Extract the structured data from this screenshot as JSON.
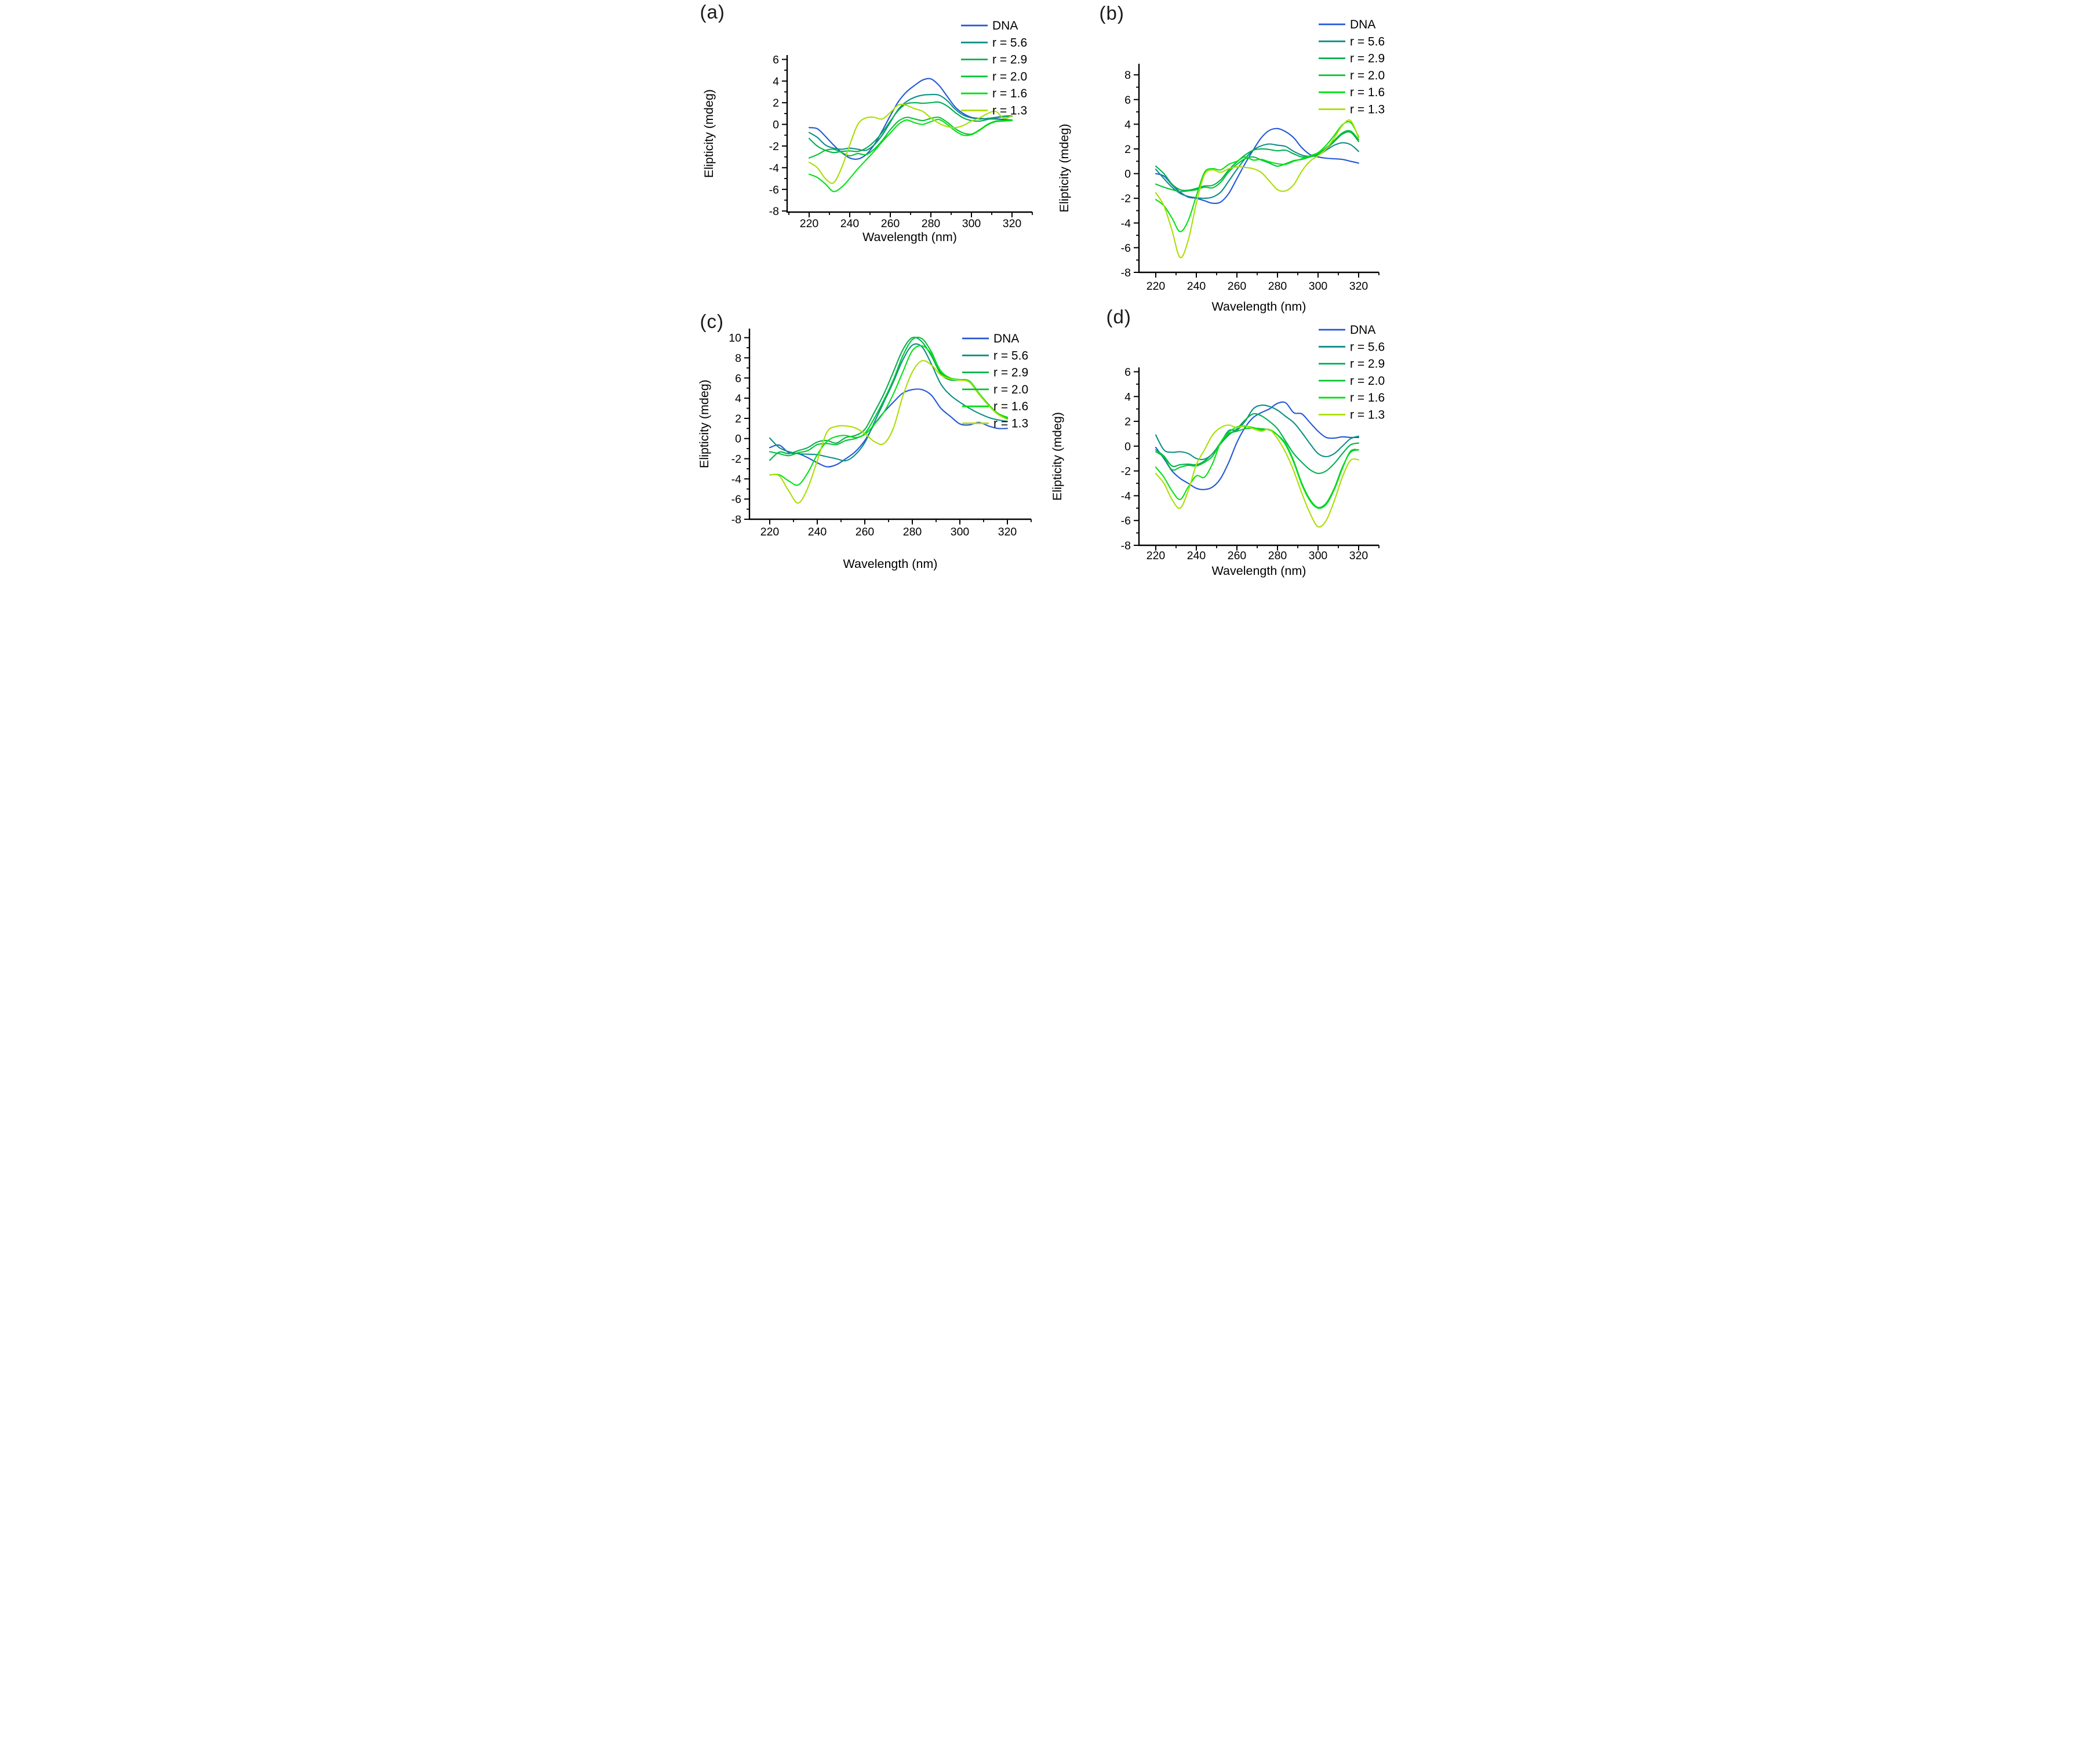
{
  "figure": {
    "kind": "CD spectroscopy figure, 2x2 panels",
    "background": "#ffffff",
    "text_color": "#000000"
  },
  "colors": {
    "dna": "#2257d9",
    "r56": "#0c8e86",
    "r29": "#00b04f",
    "r20": "#00c430",
    "r16": "#00e212",
    "r13": "#aade00"
  },
  "legend_labels": [
    "DNA",
    "r = 5.6",
    "r = 2.9",
    "r = 2.0",
    "r = 1.6",
    "r = 1.3"
  ],
  "chart_data": [
    {
      "id": "a",
      "panel_label": "(a)",
      "type": "line",
      "title": "",
      "xlabel": "Wavelength (nm)",
      "ylabel": "Elipticity (mdeg)",
      "legend_position": "top-right",
      "grid": false,
      "x": [
        220,
        224,
        228,
        232,
        236,
        240,
        244,
        248,
        252,
        256,
        260,
        264,
        268,
        272,
        276,
        280,
        284,
        288,
        292,
        296,
        300,
        304,
        308,
        312,
        316,
        320
      ],
      "xlim": [
        210,
        330
      ],
      "ylim": [
        -8.1,
        6.4
      ],
      "x_major_ticks": [
        220,
        240,
        260,
        280,
        300,
        320
      ],
      "x_minor_ticks": [
        210,
        230,
        250,
        270,
        290,
        310,
        330
      ],
      "y_major_ticks": [
        -8,
        -6,
        -4,
        -2,
        0,
        2,
        4,
        6
      ],
      "y_minor_ticks": [
        -7,
        -5,
        -3,
        -1,
        1,
        3,
        5
      ],
      "series": [
        {
          "name": "DNA",
          "color_key": "dna",
          "values": [
            -0.3,
            -0.4,
            -1.1,
            -1.9,
            -2.6,
            -3.1,
            -3.2,
            -2.8,
            -1.9,
            -0.6,
            0.8,
            2.1,
            3.0,
            3.6,
            4.1,
            4.2,
            3.6,
            2.6,
            1.6,
            1.0,
            0.65,
            0.55,
            0.5,
            0.5,
            0.45,
            0.4
          ]
        },
        {
          "name": "r = 5.6",
          "color_key": "r56",
          "values": [
            -0.75,
            -1.2,
            -1.9,
            -2.2,
            -2.3,
            -2.2,
            -2.3,
            -2.4,
            -1.9,
            -1.0,
            0.2,
            1.4,
            2.1,
            2.5,
            2.7,
            2.75,
            2.7,
            2.2,
            1.4,
            0.85,
            0.6,
            0.5,
            0.55,
            0.65,
            0.75,
            0.8
          ]
        },
        {
          "name": "r = 2.9",
          "color_key": "r29",
          "values": [
            -1.3,
            -2.0,
            -2.4,
            -2.6,
            -2.5,
            -2.45,
            -2.5,
            -2.2,
            -1.6,
            -0.75,
            0.3,
            1.3,
            1.9,
            2.0,
            1.95,
            2.0,
            2.05,
            1.7,
            1.1,
            0.6,
            0.35,
            0.3,
            0.45,
            0.6,
            0.7,
            0.75
          ]
        },
        {
          "name": "r = 2.0",
          "color_key": "r20",
          "values": [
            -3.1,
            -2.8,
            -2.4,
            -2.3,
            -2.6,
            -2.9,
            -2.7,
            -2.8,
            -2.3,
            -1.5,
            -0.5,
            0.3,
            0.65,
            0.5,
            0.35,
            0.55,
            0.65,
            0.2,
            -0.4,
            -0.8,
            -0.9,
            -0.5,
            0.0,
            0.3,
            0.35,
            0.4
          ]
        },
        {
          "name": "r = 1.6",
          "color_key": "r16",
          "values": [
            -4.6,
            -4.9,
            -5.5,
            -6.2,
            -5.8,
            -5.0,
            -4.1,
            -3.3,
            -2.5,
            -1.6,
            -0.8,
            0.0,
            0.4,
            0.15,
            0.0,
            0.25,
            0.45,
            0.0,
            -0.6,
            -1.0,
            -0.95,
            -0.55,
            -0.05,
            0.25,
            0.3,
            0.35
          ]
        },
        {
          "name": "r = 1.3",
          "color_key": "r13",
          "values": [
            -3.5,
            -4.0,
            -5.0,
            -5.4,
            -4.0,
            -1.9,
            0.0,
            0.6,
            0.65,
            0.5,
            1.1,
            1.8,
            1.75,
            1.45,
            1.2,
            0.6,
            0.1,
            -0.2,
            -0.3,
            -0.1,
            0.3,
            0.6,
            1.0,
            1.2,
            0.55,
            0.8
          ]
        }
      ]
    },
    {
      "id": "b",
      "panel_label": "(b)",
      "type": "line",
      "title": "",
      "xlabel": "Wavelength (nm)",
      "ylabel": "Elipticity (mdeg)",
      "legend_position": "top-right",
      "grid": false,
      "x": [
        220,
        224,
        228,
        232,
        236,
        240,
        244,
        248,
        252,
        256,
        260,
        264,
        268,
        272,
        276,
        280,
        284,
        288,
        292,
        296,
        300,
        304,
        308,
        312,
        316,
        320
      ],
      "xlim": [
        210,
        330
      ],
      "ylim": [
        -8,
        8.9
      ],
      "x_major_ticks": [
        220,
        240,
        260,
        280,
        300,
        320
      ],
      "x_minor_ticks": [
        210,
        230,
        250,
        270,
        290,
        310,
        330
      ],
      "y_major_ticks": [
        -8,
        -6,
        -4,
        -2,
        0,
        2,
        4,
        6,
        8
      ],
      "y_minor_ticks": [
        -7,
        -5,
        -3,
        -1,
        1,
        3,
        5,
        7
      ],
      "series": [
        {
          "name": "DNA",
          "color_key": "dna",
          "values": [
            0.0,
            -0.2,
            -0.9,
            -1.5,
            -1.9,
            -2.0,
            -2.2,
            -2.4,
            -2.3,
            -1.6,
            -0.4,
            0.8,
            1.9,
            2.9,
            3.5,
            3.65,
            3.4,
            2.9,
            2.1,
            1.55,
            1.35,
            1.25,
            1.2,
            1.15,
            1.0,
            0.85
          ]
        },
        {
          "name": "r = 5.6",
          "color_key": "r56",
          "values": [
            0.35,
            -0.4,
            -1.1,
            -1.6,
            -1.85,
            -1.95,
            -2.0,
            -1.9,
            -1.5,
            -0.6,
            0.35,
            1.2,
            1.9,
            2.25,
            2.4,
            2.3,
            2.2,
            1.8,
            1.5,
            1.4,
            1.5,
            1.9,
            2.3,
            2.5,
            2.35,
            1.8
          ]
        },
        {
          "name": "r = 2.9",
          "color_key": "r29",
          "values": [
            0.6,
            0.0,
            -0.85,
            -1.3,
            -1.35,
            -1.2,
            -1.0,
            -0.95,
            -0.5,
            0.3,
            0.95,
            1.5,
            1.9,
            2.0,
            1.95,
            1.85,
            1.9,
            1.6,
            1.35,
            1.4,
            1.55,
            2.0,
            2.6,
            3.2,
            3.35,
            2.6
          ]
        },
        {
          "name": "r = 2.0",
          "color_key": "r20",
          "values": [
            -0.85,
            -1.1,
            -1.3,
            -1.45,
            -1.4,
            -1.3,
            -1.1,
            -1.15,
            -0.7,
            0.15,
            0.75,
            1.2,
            1.35,
            1.1,
            0.85,
            0.6,
            0.8,
            1.05,
            1.15,
            1.35,
            1.6,
            2.1,
            2.7,
            3.3,
            3.45,
            2.75
          ]
        },
        {
          "name": "r = 1.6",
          "color_key": "r16",
          "values": [
            -2.1,
            -2.6,
            -3.6,
            -4.7,
            -3.8,
            -1.8,
            0.1,
            0.4,
            0.3,
            0.75,
            1.0,
            1.35,
            1.1,
            1.15,
            0.95,
            0.8,
            0.75,
            1.0,
            1.2,
            1.45,
            1.7,
            2.3,
            3.1,
            3.95,
            4.15,
            3.0
          ]
        },
        {
          "name": "r = 1.3",
          "color_key": "r13",
          "values": [
            -1.55,
            -2.6,
            -4.6,
            -6.8,
            -5.4,
            -2.4,
            -0.1,
            0.3,
            0.1,
            0.4,
            0.55,
            0.5,
            0.4,
            0.1,
            -0.6,
            -1.3,
            -1.4,
            -0.9,
            0.2,
            1.0,
            1.45,
            2.0,
            2.9,
            3.9,
            4.3,
            2.9
          ]
        }
      ]
    },
    {
      "id": "c",
      "panel_label": "(c)",
      "type": "line",
      "title": "",
      "xlabel": "Wavelength (nm)",
      "ylabel": "Elipticity (mdeg)",
      "legend_position": "top-right",
      "grid": false,
      "x": [
        220,
        224,
        228,
        232,
        236,
        240,
        244,
        248,
        252,
        256,
        260,
        264,
        268,
        272,
        276,
        280,
        284,
        288,
        292,
        296,
        300,
        304,
        308,
        312,
        316,
        320
      ],
      "xlim": [
        210,
        330
      ],
      "ylim": [
        -8,
        10.9
      ],
      "x_major_ticks": [
        220,
        240,
        260,
        280,
        300,
        320
      ],
      "x_minor_ticks": [
        210,
        230,
        250,
        270,
        290,
        310,
        330
      ],
      "y_major_ticks": [
        -8,
        -6,
        -4,
        -2,
        0,
        2,
        4,
        6,
        8,
        10
      ],
      "y_minor_ticks": [
        -7,
        -5,
        -3,
        -1,
        1,
        3,
        5,
        7,
        9
      ],
      "series": [
        {
          "name": "DNA",
          "color_key": "dna",
          "values": [
            -0.9,
            -0.65,
            -1.4,
            -1.5,
            -1.9,
            -2.4,
            -2.8,
            -2.6,
            -2.0,
            -1.3,
            -0.2,
            1.4,
            2.6,
            3.6,
            4.5,
            4.85,
            4.85,
            4.3,
            3.0,
            2.2,
            1.45,
            1.35,
            1.6,
            1.25,
            1.0,
            1.0
          ]
        },
        {
          "name": "r = 5.6",
          "color_key": "r56",
          "values": [
            0.05,
            -0.9,
            -1.3,
            -1.5,
            -1.55,
            -1.6,
            -1.8,
            -2.0,
            -2.2,
            -1.6,
            -0.4,
            1.6,
            3.6,
            5.6,
            7.8,
            9.25,
            9.1,
            7.4,
            5.4,
            4.3,
            3.6,
            3.0,
            2.5,
            2.1,
            1.85,
            1.7
          ]
        },
        {
          "name": "r = 2.9",
          "color_key": "r29",
          "values": [
            -2.15,
            -1.35,
            -1.5,
            -1.2,
            -0.9,
            -0.35,
            -0.2,
            -0.45,
            0.1,
            0.3,
            0.9,
            2.6,
            4.4,
            6.6,
            8.8,
            10.0,
            9.6,
            8.2,
            6.4,
            5.8,
            5.8,
            5.6,
            4.4,
            3.3,
            2.4,
            2.0
          ]
        },
        {
          "name": "r = 2.0",
          "color_key": "r20",
          "values": [
            -1.3,
            -1.5,
            -1.7,
            -1.4,
            -1.2,
            -0.6,
            -0.5,
            -0.6,
            -0.2,
            0.0,
            0.5,
            2.0,
            3.8,
            5.8,
            8.2,
            9.8,
            9.9,
            8.6,
            6.6,
            5.9,
            5.8,
            5.7,
            4.5,
            3.4,
            2.5,
            2.1
          ]
        },
        {
          "name": "r = 1.6",
          "color_key": "r16",
          "values": [
            -3.6,
            -3.6,
            -4.2,
            -4.6,
            -3.4,
            -1.6,
            -0.3,
            0.2,
            0.3,
            0.1,
            0.4,
            1.4,
            2.6,
            4.4,
            6.6,
            8.7,
            9.2,
            8.4,
            6.7,
            6.0,
            5.85,
            5.7,
            4.5,
            3.4,
            2.5,
            2.1
          ]
        },
        {
          "name": "r = 1.3",
          "color_key": "r13",
          "values": [
            -3.6,
            -3.7,
            -5.2,
            -6.4,
            -4.9,
            -2.2,
            0.6,
            1.2,
            1.25,
            1.05,
            0.5,
            -0.3,
            -0.5,
            1.0,
            4.2,
            6.6,
            7.7,
            7.3,
            6.3,
            5.9,
            5.8,
            5.6,
            4.4,
            3.3,
            2.4,
            1.9
          ]
        }
      ]
    },
    {
      "id": "d",
      "panel_label": "(d)",
      "type": "line",
      "title": "",
      "xlabel": "Wavelength (nm)",
      "ylabel": "Elipticity (mdeg)",
      "legend_position": "top-right",
      "grid": false,
      "x": [
        220,
        224,
        228,
        232,
        236,
        240,
        244,
        248,
        252,
        256,
        260,
        264,
        268,
        272,
        276,
        280,
        284,
        288,
        292,
        296,
        300,
        304,
        308,
        312,
        316,
        320
      ],
      "xlim": [
        210,
        330
      ],
      "ylim": [
        -8,
        6.35
      ],
      "x_major_ticks": [
        220,
        240,
        260,
        280,
        300,
        320
      ],
      "x_minor_ticks": [
        210,
        230,
        250,
        270,
        290,
        310,
        330
      ],
      "y_major_ticks": [
        -8,
        -6,
        -4,
        -2,
        0,
        2,
        4,
        6
      ],
      "y_minor_ticks": [
        -7,
        -5,
        -3,
        -1,
        1,
        3,
        5
      ],
      "series": [
        {
          "name": "DNA",
          "color_key": "dna",
          "values": [
            -0.1,
            -1.0,
            -2.0,
            -2.6,
            -3.0,
            -3.4,
            -3.5,
            -3.3,
            -2.6,
            -1.3,
            0.3,
            1.5,
            2.3,
            2.7,
            3.0,
            3.45,
            3.5,
            2.7,
            2.6,
            1.9,
            1.2,
            0.7,
            0.65,
            0.75,
            0.7,
            0.7
          ]
        },
        {
          "name": "r = 5.6",
          "color_key": "r56",
          "values": [
            0.9,
            -0.3,
            -0.5,
            -0.45,
            -0.6,
            -1.0,
            -1.05,
            -0.6,
            0.3,
            1.25,
            1.3,
            2.0,
            3.0,
            3.3,
            3.2,
            2.9,
            2.4,
            1.9,
            1.1,
            0.2,
            -0.6,
            -0.85,
            -0.6,
            0.0,
            0.6,
            0.8
          ]
        },
        {
          "name": "r = 2.9",
          "color_key": "r29",
          "values": [
            -0.3,
            -0.8,
            -1.6,
            -1.5,
            -1.45,
            -1.5,
            -1.2,
            -0.6,
            0.2,
            0.9,
            1.4,
            2.1,
            2.6,
            2.45,
            2.0,
            1.4,
            0.4,
            -0.6,
            -1.3,
            -1.9,
            -2.2,
            -2.0,
            -1.4,
            -0.6,
            0.1,
            0.25
          ]
        },
        {
          "name": "r = 2.0",
          "color_key": "r20",
          "values": [
            -0.45,
            -0.9,
            -1.9,
            -1.7,
            -1.55,
            -1.6,
            -1.3,
            -0.8,
            0.3,
            1.0,
            1.2,
            1.4,
            1.45,
            1.4,
            1.3,
            0.9,
            0.2,
            -1.2,
            -3.0,
            -4.3,
            -4.95,
            -4.6,
            -3.4,
            -1.7,
            -0.5,
            -0.3
          ]
        },
        {
          "name": "r = 1.6",
          "color_key": "r16",
          "values": [
            -1.7,
            -2.5,
            -3.6,
            -4.3,
            -3.3,
            -2.4,
            -2.5,
            -1.4,
            0.3,
            1.1,
            1.55,
            1.6,
            1.5,
            1.3,
            1.35,
            0.9,
            0.1,
            -1.3,
            -3.1,
            -4.4,
            -5.0,
            -4.7,
            -3.5,
            -1.8,
            -0.4,
            -0.3
          ]
        },
        {
          "name": "r = 1.3",
          "color_key": "r13",
          "values": [
            -2.2,
            -3.0,
            -4.3,
            -5.0,
            -3.6,
            -1.5,
            -0.3,
            0.9,
            1.5,
            1.7,
            1.5,
            1.65,
            1.4,
            1.2,
            1.35,
            0.6,
            -0.5,
            -2.0,
            -3.8,
            -5.4,
            -6.5,
            -6.0,
            -4.4,
            -2.5,
            -1.15,
            -1.1
          ]
        }
      ]
    }
  ]
}
